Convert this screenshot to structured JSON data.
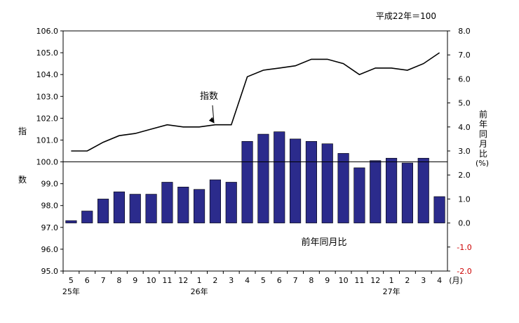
{
  "note": "平成22年＝100",
  "left_axis_label": [
    "指",
    "数"
  ],
  "right_axis_label": [
    "前",
    "年",
    "同",
    "月",
    "比",
    "(%)"
  ],
  "x_unit": "(月)",
  "colors": {
    "bar": "#2b2b8c",
    "line": "#000000",
    "negative_tick": "#cc0000",
    "baseline": "#000000"
  },
  "chart_data": {
    "type": "bar",
    "categories": [
      "5",
      "6",
      "7",
      "8",
      "9",
      "10",
      "11",
      "12",
      "1",
      "2",
      "3",
      "4",
      "5",
      "6",
      "7",
      "8",
      "9",
      "10",
      "11",
      "12",
      "1",
      "2",
      "3",
      "4"
    ],
    "year_labels": [
      {
        "label": "25年",
        "index": 0
      },
      {
        "label": "26年",
        "index": 8
      },
      {
        "label": "27年",
        "index": 20
      }
    ],
    "left_axis": {
      "min": 95.0,
      "max": 106.0,
      "step": 1.0,
      "ticks": [
        "95.0",
        "96.0",
        "97.0",
        "98.0",
        "99.0",
        "100.0",
        "101.0",
        "102.0",
        "103.0",
        "104.0",
        "105.0",
        "106.0"
      ]
    },
    "right_axis": {
      "min": -2.0,
      "max": 8.0,
      "step": 1.0,
      "ticks": [
        "-2.0",
        "-1.0",
        "0.0",
        "1.0",
        "2.0",
        "3.0",
        "4.0",
        "5.0",
        "6.0",
        "7.0",
        "8.0"
      ]
    },
    "reference_line_left": 100.0,
    "series": [
      {
        "name": "指数",
        "type": "line",
        "axis": "left",
        "values": [
          100.5,
          100.5,
          100.9,
          101.2,
          101.3,
          101.5,
          101.7,
          101.6,
          101.6,
          101.7,
          101.7,
          103.9,
          104.2,
          104.3,
          104.4,
          104.7,
          104.7,
          104.5,
          104.0,
          104.3,
          104.3,
          104.2,
          104.5,
          105.0
        ]
      },
      {
        "name": "前年同月比",
        "type": "bar",
        "axis": "right",
        "values": [
          0.1,
          0.5,
          1.0,
          1.3,
          1.2,
          1.2,
          1.7,
          1.5,
          1.4,
          1.8,
          1.7,
          3.4,
          3.7,
          3.8,
          3.5,
          3.4,
          3.3,
          2.9,
          2.3,
          2.6,
          2.7,
          2.5,
          2.7,
          1.1
        ]
      }
    ]
  }
}
